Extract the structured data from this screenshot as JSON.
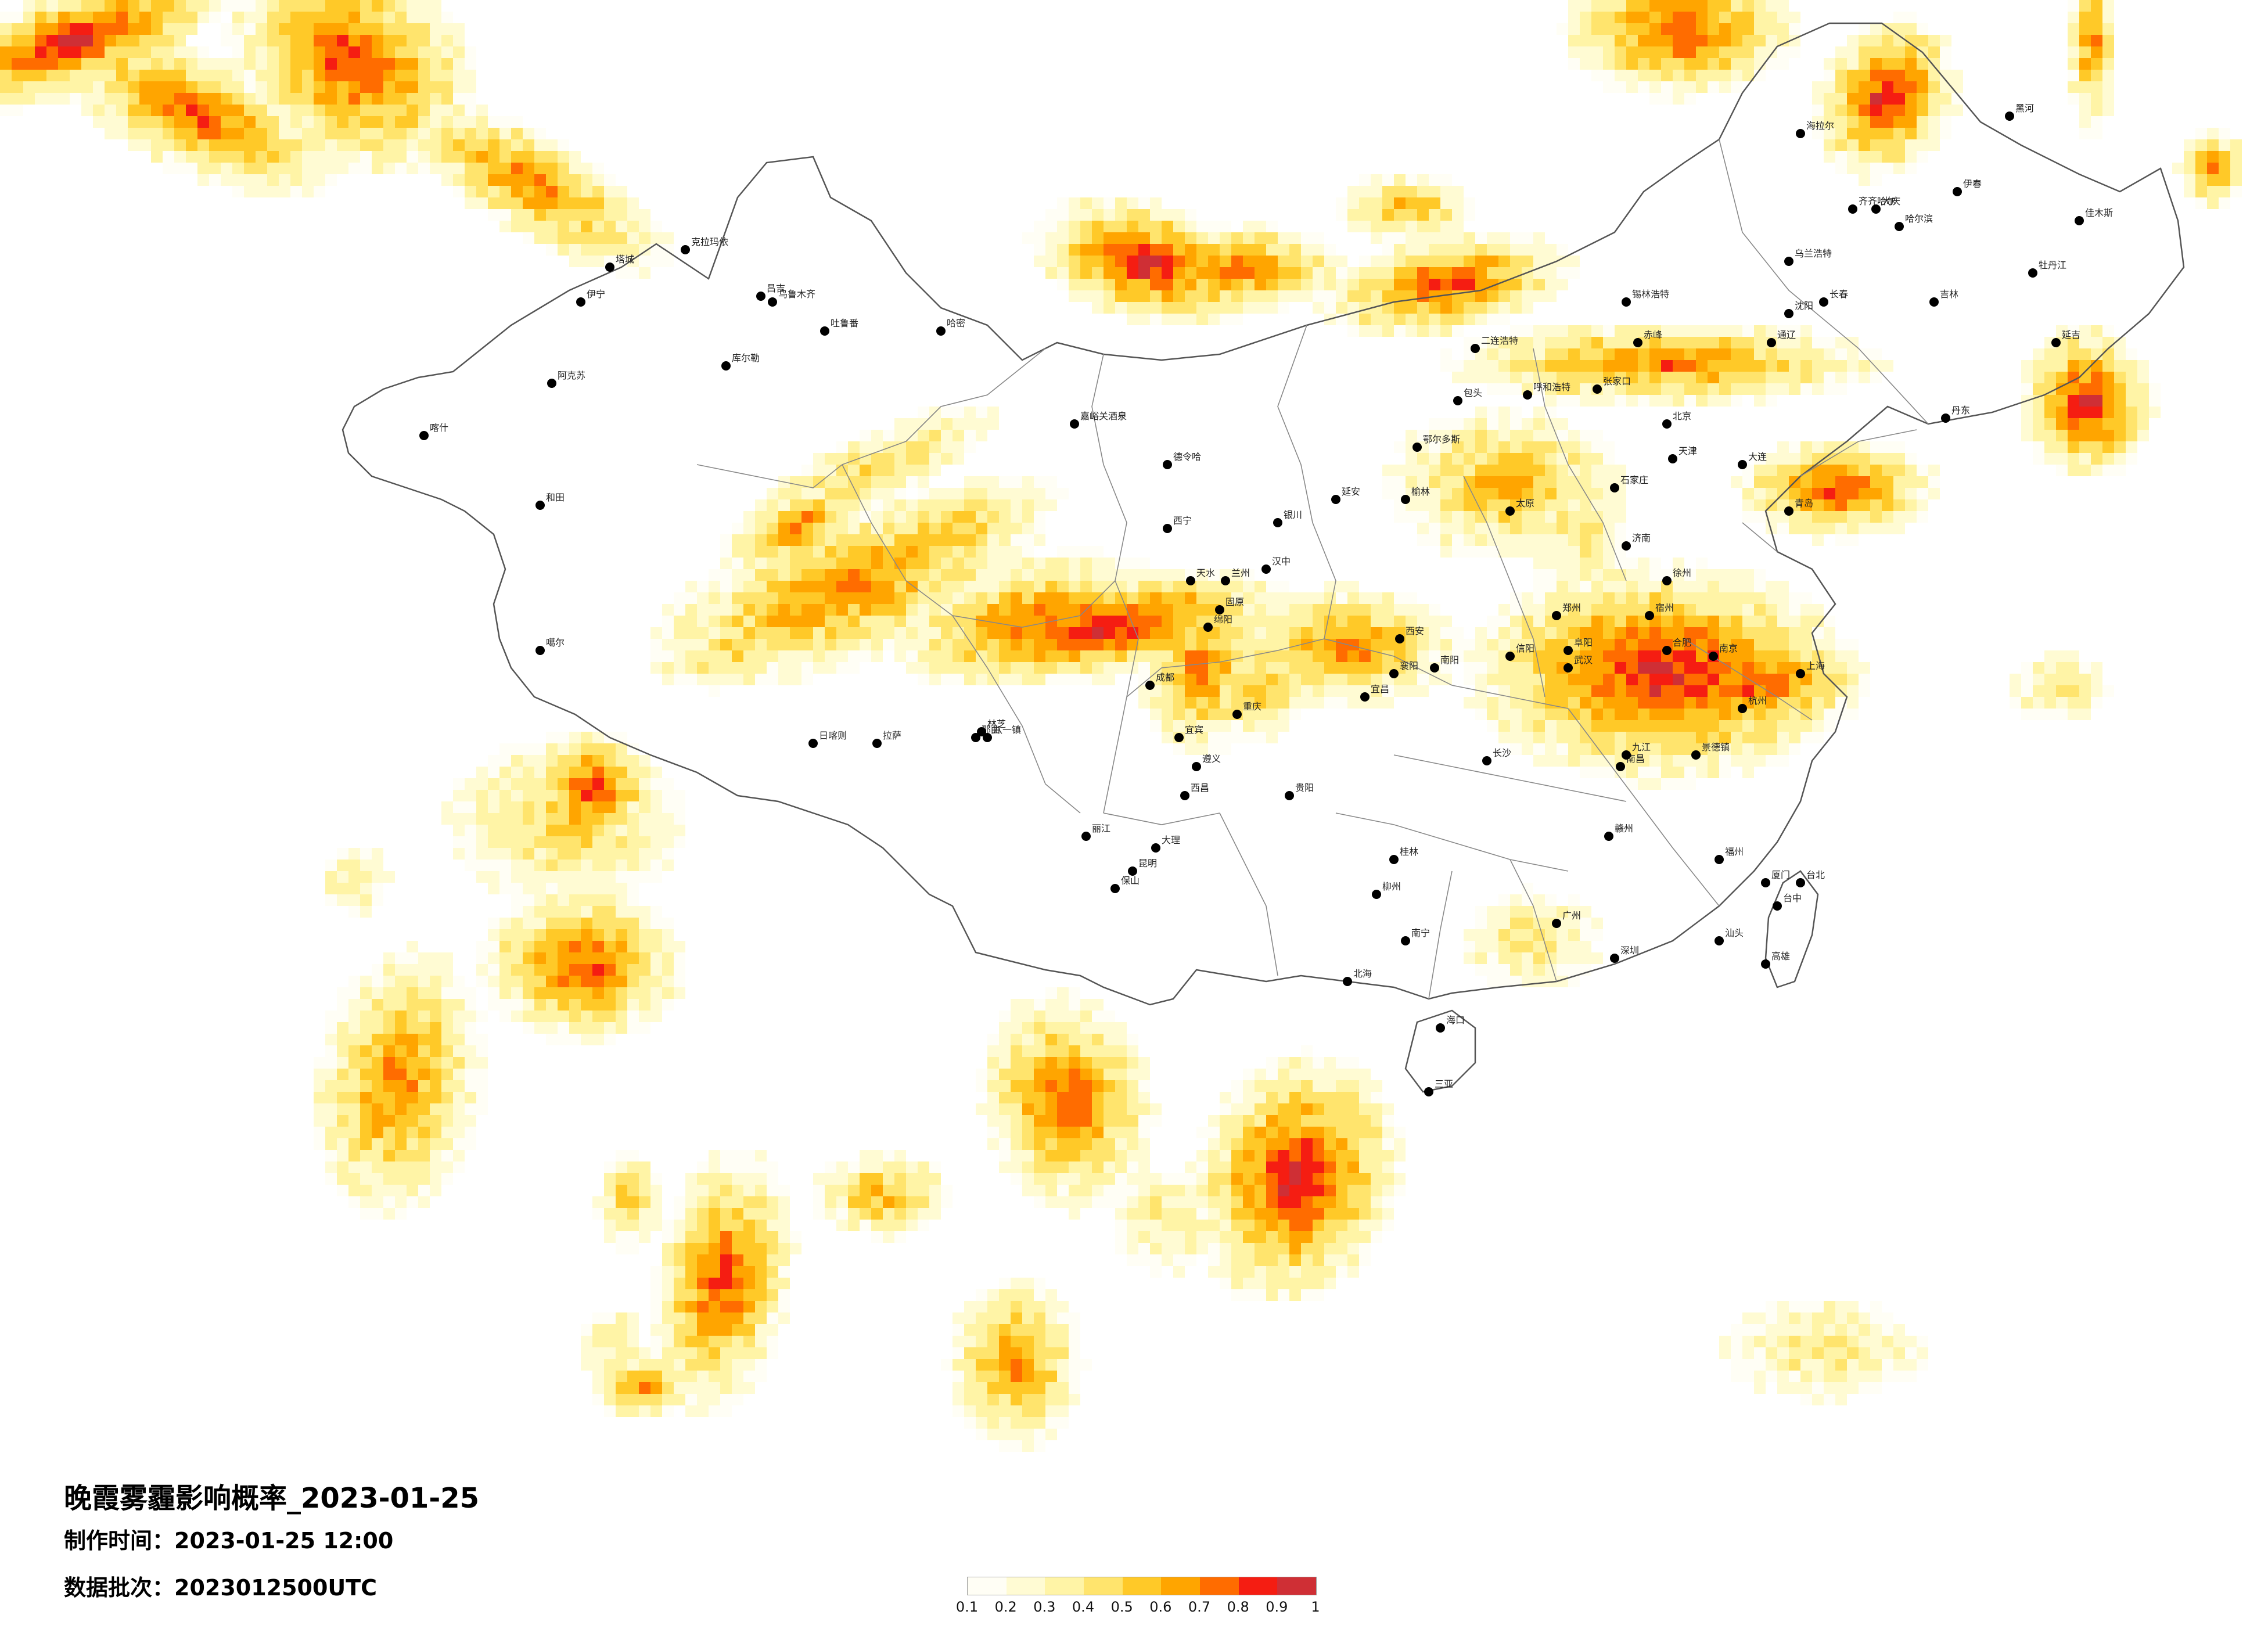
{
  "title": "晚霞雾霾影响概率_2023-01-25",
  "produced_time": "制作时间：2023-01-25 12:00",
  "data_batch": "数据批次：2023012500UTC",
  "legend": {
    "ticks": [
      "0.1",
      "0.2",
      "0.3",
      "0.4",
      "0.5",
      "0.6",
      "0.7",
      "0.8",
      "0.9",
      "1"
    ],
    "colors": [
      "#fffef5",
      "#fffbd3",
      "#fff4a6",
      "#ffe46d",
      "#ffc928",
      "#ffa500",
      "#ff6c00",
      "#f51d12",
      "#cf2f35"
    ]
  },
  "cities": [
    {
      "name": "克拉玛依"
    },
    {
      "name": "塔城"
    },
    {
      "name": "伊宁"
    },
    {
      "name": "昌吉"
    },
    {
      "name": "乌鲁木齐"
    },
    {
      "name": "吐鲁番"
    },
    {
      "name": "哈密"
    },
    {
      "name": "库尔勒"
    },
    {
      "name": "阿克苏"
    },
    {
      "name": "喀什"
    },
    {
      "name": "和田"
    },
    {
      "name": "嘉峪关酒泉"
    },
    {
      "name": "德令哈"
    },
    {
      "name": "噶尔"
    },
    {
      "name": "日喀则"
    },
    {
      "name": "拉萨"
    },
    {
      "name": "那曲"
    },
    {
      "name": "林芝"
    },
    {
      "name": "八一镇"
    },
    {
      "name": "西宁"
    },
    {
      "name": "兰州"
    },
    {
      "name": "银川"
    },
    {
      "name": "呼和浩特"
    },
    {
      "name": "包头"
    },
    {
      "name": "北京"
    },
    {
      "name": "天津"
    },
    {
      "name": "石家庄"
    },
    {
      "name": "太原"
    },
    {
      "name": "济南"
    },
    {
      "name": "青岛"
    },
    {
      "name": "郑州"
    },
    {
      "name": "西安"
    },
    {
      "name": "南京"
    },
    {
      "name": "合肥"
    },
    {
      "name": "上海"
    },
    {
      "name": "杭州"
    },
    {
      "name": "武汉"
    },
    {
      "name": "长沙"
    },
    {
      "name": "南昌"
    },
    {
      "name": "福州"
    },
    {
      "name": "台北"
    },
    {
      "name": "台中"
    },
    {
      "name": "高雄"
    },
    {
      "name": "广州"
    },
    {
      "name": "深圳"
    },
    {
      "name": "南宁"
    },
    {
      "name": "海口"
    },
    {
      "name": "三亚"
    },
    {
      "name": "贵阳"
    },
    {
      "name": "昆明"
    },
    {
      "name": "成都"
    },
    {
      "name": "重庆"
    },
    {
      "name": "沈阳"
    },
    {
      "name": "长春"
    },
    {
      "name": "哈尔滨"
    },
    {
      "name": "齐齐哈尔"
    },
    {
      "name": "大庆"
    },
    {
      "name": "佳木斯"
    },
    {
      "name": "牡丹江"
    },
    {
      "name": "大连"
    },
    {
      "name": "海拉尔"
    },
    {
      "name": "锡林浩特"
    },
    {
      "name": "张家口"
    },
    {
      "name": "赤峰"
    },
    {
      "name": "通辽"
    },
    {
      "name": "吉林"
    },
    {
      "name": "延吉"
    },
    {
      "name": "丹东"
    },
    {
      "name": "徐州"
    },
    {
      "name": "宿州"
    },
    {
      "name": "阜阳"
    },
    {
      "name": "信阳"
    },
    {
      "name": "南阳"
    },
    {
      "name": "宜昌"
    },
    {
      "name": "襄阳"
    },
    {
      "name": "九江"
    },
    {
      "name": "景德镇"
    },
    {
      "name": "赣州"
    },
    {
      "name": "厦门"
    },
    {
      "name": "汕头"
    },
    {
      "name": "桂林"
    },
    {
      "name": "柳州"
    },
    {
      "name": "北海"
    },
    {
      "name": "遵义"
    },
    {
      "name": "大理"
    },
    {
      "name": "丽江"
    },
    {
      "name": "保山"
    },
    {
      "name": "西昌"
    },
    {
      "name": "宜宾"
    },
    {
      "name": "绵阳"
    },
    {
      "name": "汉中"
    },
    {
      "name": "天水"
    },
    {
      "name": "固原"
    },
    {
      "name": "延安"
    },
    {
      "name": "榆林"
    },
    {
      "name": "鄂尔多斯"
    },
    {
      "name": "二连浩特"
    },
    {
      "name": "乌兰浩特"
    },
    {
      "name": "伊春"
    },
    {
      "name": "黑河"
    }
  ]
}
